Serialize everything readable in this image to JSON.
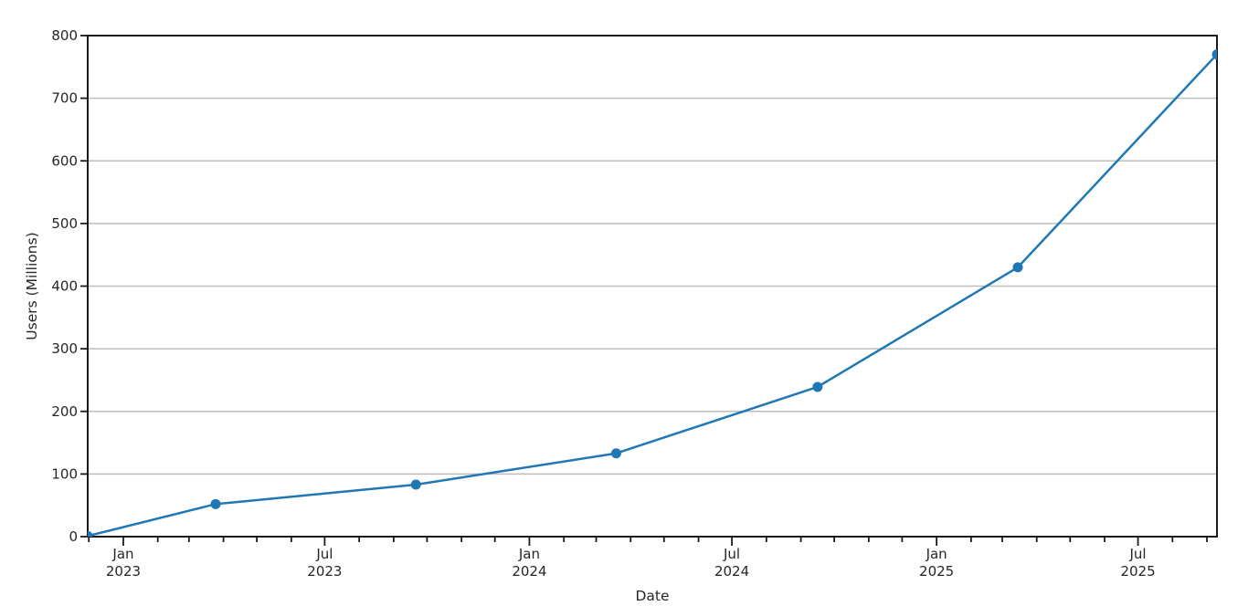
{
  "chart_data": {
    "type": "line",
    "title": "",
    "xlabel": "Date",
    "ylabel": "Users (Millions)",
    "x_range": [
      "2022-11-30",
      "2025-09-10"
    ],
    "ylim": [
      0,
      800
    ],
    "y_ticks": [
      0,
      100,
      200,
      300,
      400,
      500,
      600,
      700,
      800
    ],
    "x_ticks": [
      {
        "date": "2023-01-01",
        "month": "Jan",
        "year": "2023"
      },
      {
        "date": "2023-07-01",
        "month": "Jul",
        "year": "2023"
      },
      {
        "date": "2024-01-01",
        "month": "Jan",
        "year": "2024"
      },
      {
        "date": "2024-07-01",
        "month": "Jul",
        "year": "2024"
      },
      {
        "date": "2025-01-01",
        "month": "Jan",
        "year": "2025"
      },
      {
        "date": "2025-07-01",
        "month": "Jul",
        "year": "2025"
      }
    ],
    "grid": "horizontal",
    "legend_position": "none",
    "series": [
      {
        "name": "Users",
        "color": "#1f77b4",
        "marker": "circle",
        "points": [
          {
            "date": "2022-11-30",
            "value": 1
          },
          {
            "date": "2023-03-25",
            "value": 52
          },
          {
            "date": "2023-09-21",
            "value": 83
          },
          {
            "date": "2024-03-19",
            "value": 133
          },
          {
            "date": "2024-09-16",
            "value": 239
          },
          {
            "date": "2025-03-15",
            "value": 430
          },
          {
            "date": "2025-09-10",
            "value": 770
          }
        ]
      }
    ],
    "colors": {
      "line": "#1f77b4",
      "grid": "#bdbdbd",
      "axis": "#1a1a1a",
      "text": "#262626"
    }
  }
}
